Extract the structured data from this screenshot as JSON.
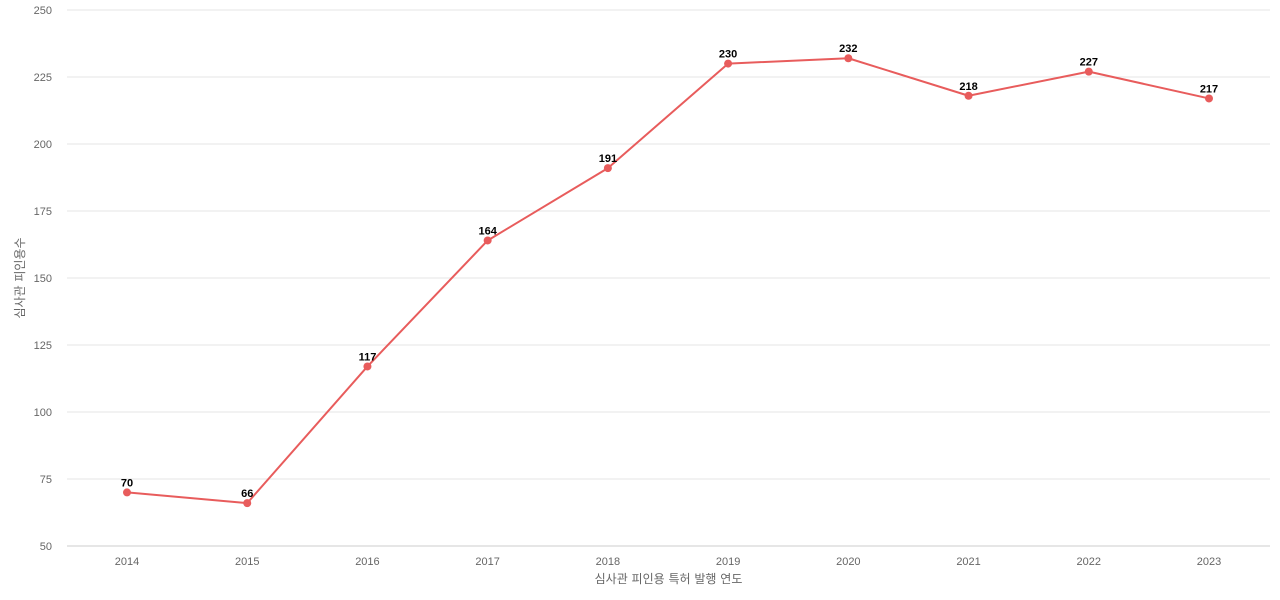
{
  "chart_data": {
    "type": "line",
    "title": "",
    "xlabel": "심사관 피인용 특허 발행 연도",
    "ylabel": "심사관 피인용수",
    "categories": [
      "2014",
      "2015",
      "2016",
      "2017",
      "2018",
      "2019",
      "2020",
      "2021",
      "2022",
      "2023"
    ],
    "series": [
      {
        "values": [
          70,
          66,
          117,
          164,
          191,
          230,
          232,
          218,
          227,
          217
        ],
        "color": "#e85c5c"
      }
    ],
    "ylim": [
      50,
      250
    ],
    "yticks": [
      50,
      75,
      100,
      125,
      150,
      175,
      200,
      225,
      250
    ],
    "grid": true,
    "data_labels": true,
    "legend": "none"
  }
}
